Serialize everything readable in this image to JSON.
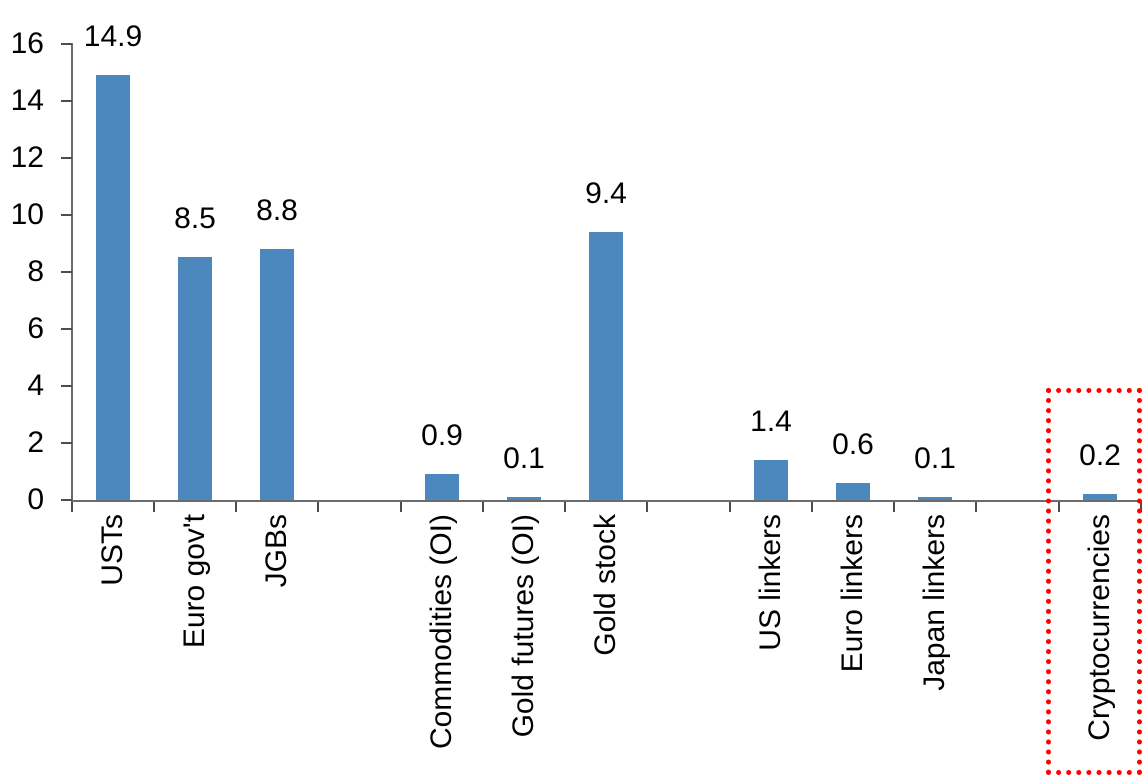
{
  "chart_data": {
    "type": "bar",
    "title": "",
    "xlabel": "",
    "ylabel": "",
    "categories": [
      "USTs",
      "Euro gov't",
      "JGBs",
      "",
      "Commodities (OI)",
      "Gold futures (OI)",
      "Gold stock",
      "",
      "US linkers",
      "Euro linkers",
      "Japan linkers",
      "",
      "Cryptocurrencies"
    ],
    "values": [
      14.9,
      8.5,
      8.8,
      null,
      0.9,
      0.1,
      9.4,
      null,
      1.4,
      0.6,
      0.1,
      null,
      0.2
    ],
    "value_labels": [
      "14.9",
      "8.5",
      "8.8",
      "",
      "0.9",
      "0.1",
      "9.4",
      "",
      "1.4",
      "0.6",
      "0.1",
      "",
      "0.2"
    ],
    "yticks": [
      0,
      2,
      4,
      6,
      8,
      10,
      12,
      14,
      16
    ],
    "ytick_labels": [
      "0",
      "2",
      "4",
      "6",
      "8",
      "10",
      "12",
      "14",
      "16"
    ],
    "ylim": [
      0,
      16
    ],
    "grid": false,
    "legend": "none",
    "bar_color": "#4C87BE",
    "axis_color": "#6b6b6b",
    "tick_color": "#4d4d4d",
    "text_color": "#000000",
    "annotation": {
      "type": "highlight-box",
      "target": "Cryptocurrencies",
      "border_color": "#FF0000",
      "border_style": "dotted"
    }
  }
}
